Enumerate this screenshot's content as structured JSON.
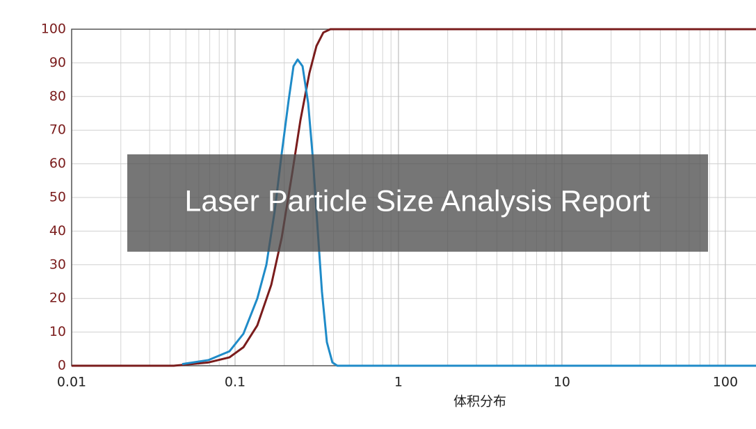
{
  "chart_data": {
    "type": "line",
    "title": "Laser Particle Size Analysis Report",
    "xlabel": "体积分布",
    "log_x": true,
    "grid": true,
    "xlim": [
      0.01,
      154
    ],
    "ylim": [
      0,
      100
    ],
    "xticks": [
      0.01,
      0.1,
      1,
      10,
      100
    ],
    "yticks": [
      0,
      10,
      20,
      30,
      40,
      50,
      60,
      70,
      80,
      90,
      100
    ],
    "series": [
      {
        "color": "#7a1c1c",
        "x": [
          0.01,
          0.0422,
          0.0689,
          0.0925,
          0.1125,
          0.1368,
          0.1665,
          0.1928,
          0.2233,
          0.2512,
          0.285,
          0.3148,
          0.3467,
          0.3828,
          154
        ],
        "values": [
          0,
          0,
          1,
          2.5,
          5.5,
          12,
          24,
          38,
          57,
          73,
          87,
          95,
          99,
          100,
          100
        ]
      },
      {
        "color": "#1f8bc8",
        "x": [
          0.0475,
          0.0689,
          0.0925,
          0.1125,
          0.1368,
          0.1554,
          0.1749,
          0.1928,
          0.2128,
          0.2277,
          0.2415,
          0.2588,
          0.28,
          0.3,
          0.3208,
          0.34,
          0.3646,
          0.394,
          0.4223,
          154
        ],
        "values": [
          0.5,
          1.7,
          4.3,
          9.5,
          20,
          30,
          46,
          63,
          79,
          89,
          91,
          89,
          78,
          61,
          40,
          22,
          7,
          1,
          0,
          0
        ]
      }
    ]
  }
}
